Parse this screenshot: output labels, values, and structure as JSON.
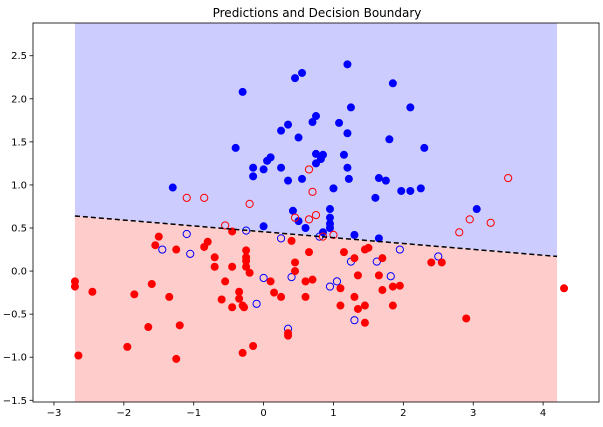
{
  "chart_data": {
    "type": "scatter",
    "title": "Predictions and Decision Boundary",
    "xlabel": "",
    "ylabel": "",
    "xlim": [
      -3.3,
      4.8
    ],
    "ylim": [
      -1.52,
      2.88
    ],
    "x_ticks": [
      -3,
      -2,
      -1,
      0,
      1,
      2,
      3,
      4
    ],
    "y_ticks": [
      -1.5,
      -1.0,
      -0.5,
      0.0,
      0.5,
      1.0,
      1.5,
      2.0,
      2.5
    ],
    "grid": false,
    "colors": {
      "class1_region": "#ccccff",
      "class0_region": "#ffcccc",
      "class1_point": "#0000ff",
      "class0_point": "#ff0000",
      "boundary": "#000000"
    },
    "regions": {
      "x_range": [
        -2.7,
        4.2
      ],
      "boundary_line": {
        "x": [
          -2.7,
          4.2
        ],
        "y": [
          0.64,
          0.17
        ],
        "style": "dashed"
      }
    },
    "series": [
      {
        "marker": "filled",
        "color": "#0000ff",
        "points": [
          [
            1.2,
            2.4
          ],
          [
            0.55,
            2.3
          ],
          [
            0.45,
            2.24
          ],
          [
            1.85,
            2.18
          ],
          [
            -0.3,
            2.08
          ],
          [
            2.1,
            1.9
          ],
          [
            1.25,
            1.9
          ],
          [
            0.75,
            1.8
          ],
          [
            0.7,
            1.73
          ],
          [
            0.35,
            1.7
          ],
          [
            1.08,
            1.72
          ],
          [
            0.25,
            1.63
          ],
          [
            1.2,
            1.6
          ],
          [
            0.5,
            1.55
          ],
          [
            1.8,
            1.53
          ],
          [
            -0.4,
            1.43
          ],
          [
            2.3,
            1.43
          ],
          [
            0.75,
            1.36
          ],
          [
            0.85,
            1.35
          ],
          [
            1.15,
            1.35
          ],
          [
            0.1,
            1.32
          ],
          [
            0.05,
            1.28
          ],
          [
            0.82,
            1.3
          ],
          [
            0.75,
            1.25
          ],
          [
            -0.15,
            1.2
          ],
          [
            0.0,
            1.18
          ],
          [
            1.2,
            1.2
          ],
          [
            0.25,
            1.2
          ],
          [
            -0.15,
            1.1
          ],
          [
            0.55,
            1.07
          ],
          [
            1.65,
            1.08
          ],
          [
            1.75,
            1.05
          ],
          [
            0.35,
            1.05
          ],
          [
            1.22,
            1.07
          ],
          [
            1.0,
            0.96
          ],
          [
            2.25,
            0.96
          ],
          [
            -1.3,
            0.97
          ],
          [
            1.97,
            0.93
          ],
          [
            2.1,
            0.93
          ],
          [
            1.6,
            0.85
          ],
          [
            0.95,
            0.72
          ],
          [
            3.05,
            0.72
          ],
          [
            0.42,
            0.7
          ],
          [
            0.95,
            0.62
          ],
          [
            0.5,
            0.58
          ],
          [
            0.95,
            0.55
          ],
          [
            0.95,
            0.5
          ],
          [
            0.0,
            0.52
          ],
          [
            0.6,
            0.5
          ],
          [
            0.85,
            0.45
          ],
          [
            1.3,
            0.42
          ],
          [
            1.65,
            0.38
          ]
        ]
      },
      {
        "marker": "hollow",
        "color": "#0000ff",
        "points": [
          [
            -1.1,
            0.43
          ],
          [
            -0.25,
            0.47
          ],
          [
            0.25,
            0.38
          ],
          [
            0.8,
            0.4
          ],
          [
            1.95,
            0.25
          ],
          [
            -1.45,
            0.25
          ],
          [
            -1.05,
            0.2
          ],
          [
            2.5,
            0.17
          ],
          [
            1.25,
            0.11
          ],
          [
            1.62,
            0.11
          ],
          [
            -0.0,
            -0.08
          ],
          [
            1.82,
            -0.06
          ],
          [
            0.4,
            -0.07
          ],
          [
            1.05,
            -0.12
          ],
          [
            0.95,
            -0.18
          ],
          [
            -0.1,
            -0.38
          ],
          [
            1.3,
            -0.57
          ],
          [
            0.35,
            -0.67
          ]
        ]
      },
      {
        "marker": "filled",
        "color": "#ff0000",
        "points": [
          [
            -2.7,
            -0.12
          ],
          [
            -2.7,
            -0.18
          ],
          [
            -2.45,
            -0.24
          ],
          [
            -1.85,
            -0.27
          ],
          [
            -1.6,
            -0.15
          ],
          [
            -1.35,
            -0.3
          ],
          [
            -2.65,
            -0.98
          ],
          [
            -1.25,
            -1.02
          ],
          [
            -1.95,
            -0.88
          ],
          [
            -1.65,
            -0.65
          ],
          [
            -1.2,
            -0.63
          ],
          [
            -0.3,
            -0.95
          ],
          [
            -0.15,
            -0.87
          ],
          [
            0.35,
            -0.72
          ],
          [
            0.35,
            -0.75
          ],
          [
            -1.5,
            0.4
          ],
          [
            -1.55,
            0.3
          ],
          [
            -1.25,
            0.25
          ],
          [
            -0.8,
            0.34
          ],
          [
            -0.85,
            0.28
          ],
          [
            -0.45,
            0.46
          ],
          [
            -0.7,
            0.16
          ],
          [
            -0.25,
            0.24
          ],
          [
            -0.25,
            0.16
          ],
          [
            -0.25,
            0.12
          ],
          [
            -0.25,
            0.05
          ],
          [
            -0.45,
            0.05
          ],
          [
            -0.2,
            -0.02
          ],
          [
            -0.7,
            0.05
          ],
          [
            -0.55,
            -0.12
          ],
          [
            -0.35,
            -0.24
          ],
          [
            -0.6,
            -0.33
          ],
          [
            -0.35,
            -0.32
          ],
          [
            -0.45,
            -0.42
          ],
          [
            -0.3,
            -0.4
          ],
          [
            -0.28,
            -0.42
          ],
          [
            0.1,
            -0.12
          ],
          [
            0.15,
            -0.25
          ],
          [
            0.25,
            -0.3
          ],
          [
            0.4,
            0.35
          ],
          [
            0.45,
            0.1
          ],
          [
            0.45,
            0.0
          ],
          [
            0.6,
            -0.12
          ],
          [
            0.6,
            -0.3
          ],
          [
            0.7,
            -0.1
          ],
          [
            0.65,
            0.22
          ],
          [
            1.15,
            0.22
          ],
          [
            1.3,
            0.15
          ],
          [
            1.35,
            -0.05
          ],
          [
            1.45,
            0.25
          ],
          [
            1.5,
            0.27
          ],
          [
            1.1,
            -0.2
          ],
          [
            1.1,
            -0.4
          ],
          [
            1.3,
            -0.3
          ],
          [
            1.35,
            -0.44
          ],
          [
            1.45,
            -0.4
          ],
          [
            1.45,
            -0.6
          ],
          [
            1.65,
            -0.05
          ],
          [
            1.7,
            -0.22
          ],
          [
            1.7,
            0.15
          ],
          [
            1.85,
            -0.18
          ],
          [
            1.85,
            -0.4
          ],
          [
            1.95,
            -0.17
          ],
          [
            2.4,
            0.1
          ],
          [
            2.55,
            0.1
          ],
          [
            2.9,
            -0.55
          ],
          [
            4.3,
            -0.2
          ]
        ]
      },
      {
        "marker": "hollow",
        "color": "#ff0000",
        "points": [
          [
            0.65,
            1.18
          ],
          [
            -1.1,
            0.85
          ],
          [
            -0.85,
            0.85
          ],
          [
            -0.2,
            0.78
          ],
          [
            3.5,
            1.08
          ],
          [
            0.7,
            0.92
          ],
          [
            0.45,
            0.62
          ],
          [
            0.65,
            0.6
          ],
          [
            0.75,
            0.65
          ],
          [
            2.95,
            0.6
          ],
          [
            3.25,
            0.56
          ],
          [
            -0.55,
            0.53
          ],
          [
            2.8,
            0.45
          ],
          [
            0.85,
            0.4
          ],
          [
            1.0,
            0.42
          ]
        ]
      }
    ]
  }
}
